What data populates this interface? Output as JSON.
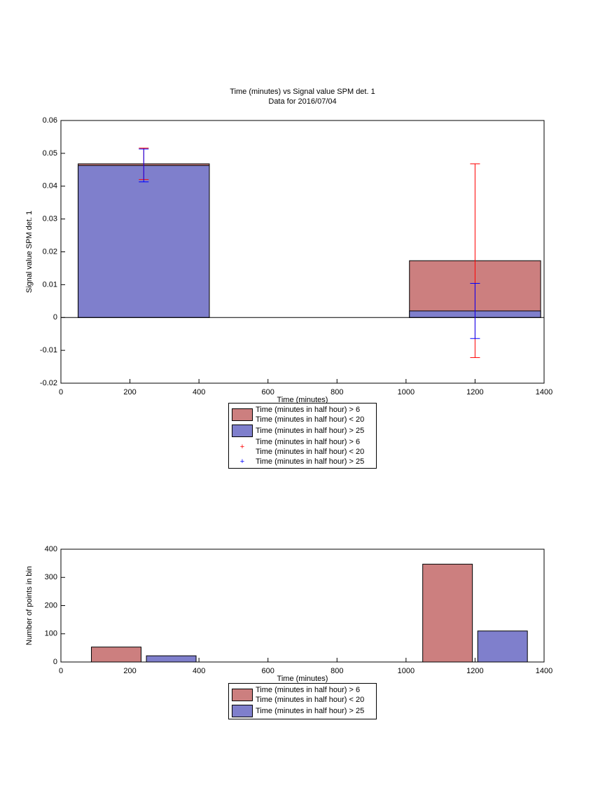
{
  "chart_data": [
    {
      "type": "bar",
      "barmode": "overlay",
      "title": "Time (minutes) vs Signal value SPM det. 1",
      "subtitle": "Data for 2016/07/04",
      "x_label": "Time (minutes)",
      "y_label": "Signal value SPM det. 1",
      "x": [
        240,
        1200
      ],
      "series": [
        {
          "name": "Time (minutes in half hour) > 6\nTime (minutes in half hour) < 20",
          "color": "#cc7f7f",
          "error_color": "#ff0000",
          "values": [
            0.0468,
            0.0173
          ],
          "errors": [
            0.0048,
            0.0295
          ]
        },
        {
          "name": "Time (minutes in half hour) > 25",
          "color": "#7f7fcc",
          "error_color": "#0000ff",
          "values": [
            0.0463,
            0.002
          ],
          "errors": [
            0.005,
            0.0084
          ]
        }
      ],
      "xlim": [
        0,
        1400
      ],
      "xticks": [
        0,
        200,
        400,
        600,
        800,
        1000,
        1200,
        1400
      ],
      "ylim": [
        -0.02,
        0.06
      ],
      "yticks": [
        -0.02,
        -0.01,
        0,
        0.01,
        0.02,
        0.03,
        0.04,
        0.05,
        0.06
      ],
      "grid": false,
      "legend": "below"
    },
    {
      "type": "bar",
      "barmode": "group",
      "x_label": "Time (minutes)",
      "y_label": "Number of points in bin",
      "x": [
        240,
        1200
      ],
      "series": [
        {
          "name": "Time (minutes in half hour) > 6\nTime (minutes in half hour) < 20",
          "color": "#cc7f7f",
          "values": [
            53,
            347
          ]
        },
        {
          "name": "Time (minutes in half hour) > 25",
          "color": "#7f7fcc",
          "values": [
            22,
            110
          ]
        }
      ],
      "xlim": [
        0,
        1400
      ],
      "xticks": [
        0,
        200,
        400,
        600,
        800,
        1000,
        1200,
        1400
      ],
      "ylim": [
        0,
        400
      ],
      "yticks": [
        0,
        100,
        200,
        300,
        400
      ],
      "grid": false,
      "legend": "below"
    }
  ]
}
